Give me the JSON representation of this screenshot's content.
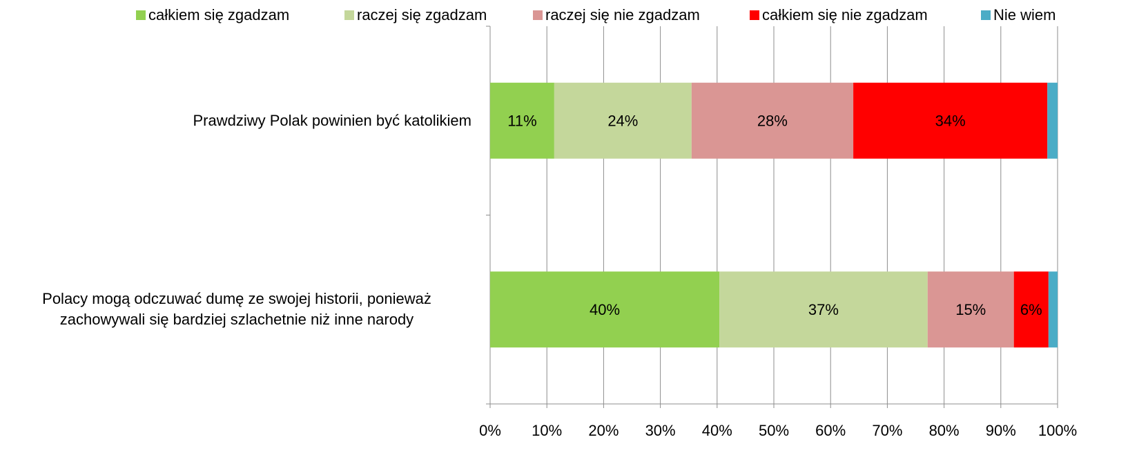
{
  "chart_data": {
    "type": "stacked_bar_horizontal",
    "categories": [
      "Prawdziwy Polak powinien być katolikiem",
      "Polacy mogą odczuwać dumę ze swojej historii, ponieważ zachowywali się bardziej szlachetnie niż inne narody"
    ],
    "series": [
      {
        "name": "całkiem się zgadzam",
        "color": "#92d050",
        "values": [
          11.3,
          40.4
        ],
        "value_labels": [
          "11%",
          "40%"
        ]
      },
      {
        "name": "raczej się zgadzam",
        "color": "#c4d79b",
        "values": [
          24.2,
          36.7
        ],
        "value_labels": [
          "24%",
          "37%"
        ]
      },
      {
        "name": "raczej się nie zgadzam",
        "color": "#da9694",
        "values": [
          28.5,
          15.2
        ],
        "value_labels": [
          "28%",
          "15%"
        ]
      },
      {
        "name": "całkiem się nie zgadzam",
        "color": "#ff0000",
        "values": [
          34.2,
          6.1
        ],
        "value_labels": [
          "34%",
          "6%"
        ]
      },
      {
        "name": "Nie wiem",
        "color": "#4bacc6",
        "values": [
          1.8,
          1.6
        ],
        "value_labels": [
          null,
          null
        ]
      }
    ],
    "xlim": [
      0,
      100
    ],
    "xticks": [
      {
        "value": 0,
        "label": "0%"
      },
      {
        "value": 10,
        "label": "10%"
      },
      {
        "value": 20,
        "label": "20%"
      },
      {
        "value": 30,
        "label": "30%"
      },
      {
        "value": 40,
        "label": "40%"
      },
      {
        "value": 50,
        "label": "50%"
      },
      {
        "value": 60,
        "label": "60%"
      },
      {
        "value": 70,
        "label": "70%"
      },
      {
        "value": 80,
        "label": "80%"
      },
      {
        "value": 90,
        "label": "90%"
      },
      {
        "value": 100,
        "label": "100%"
      }
    ],
    "grid": true,
    "legend": "top"
  }
}
